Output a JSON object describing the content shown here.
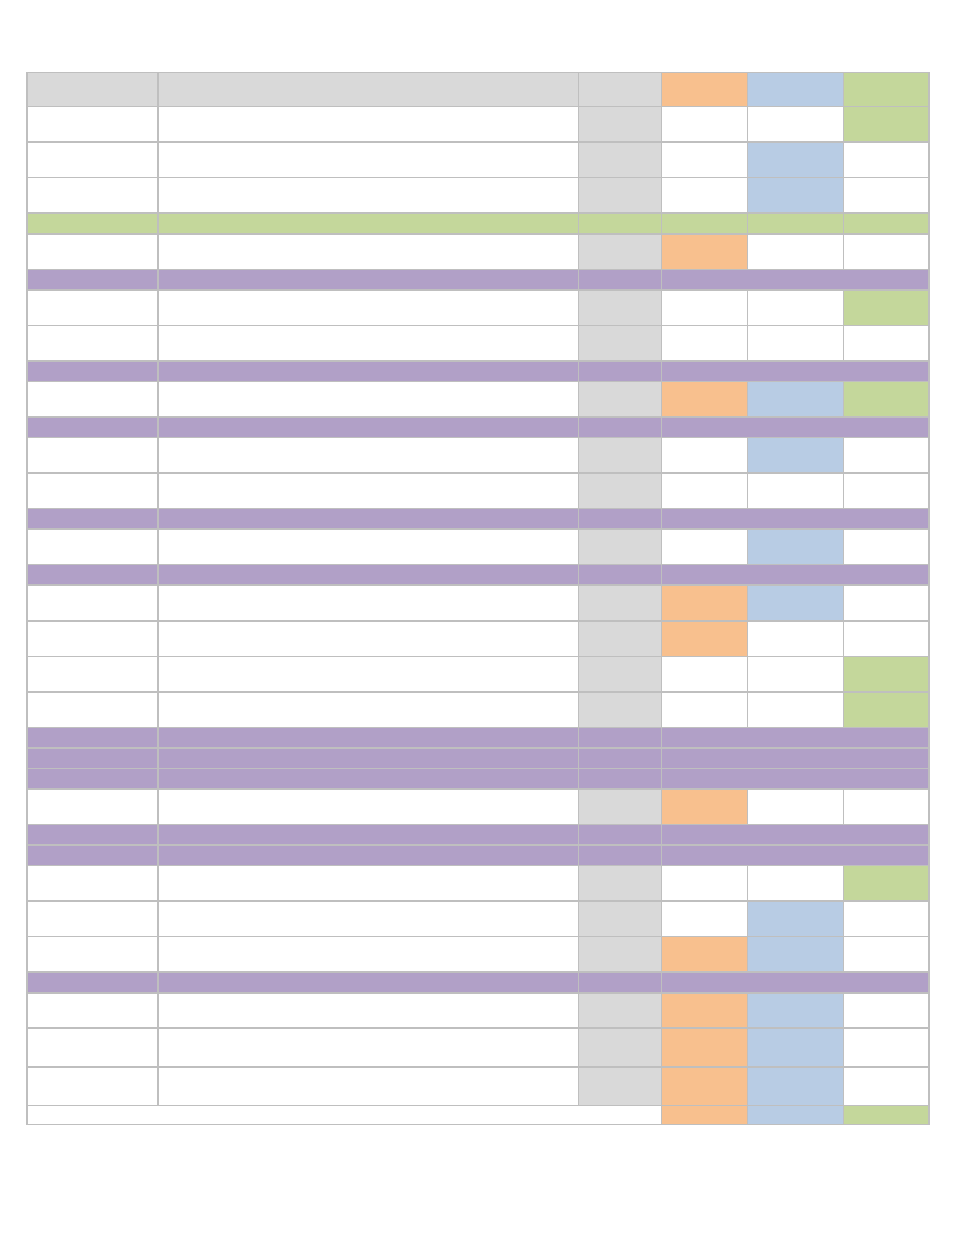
{
  "colors": {
    "grid": "#bfbfbf",
    "gray": "#d9d9d9",
    "orange": "#f8c08e",
    "blue": "#b8cce4",
    "green": "#c4d79b",
    "purple": "#b1a0c7",
    "white": "#ffffff"
  },
  "rows": [
    {
      "kind": "header",
      "h": "tall",
      "fills": [
        "gray",
        "gray",
        "gray",
        "orange",
        "blue",
        "green"
      ]
    },
    {
      "kind": "item",
      "h": "tall",
      "fills": [
        "white",
        "white",
        "gray",
        "white",
        "white",
        "green"
      ]
    },
    {
      "kind": "item",
      "h": "tall",
      "fills": [
        "white",
        "white",
        "gray",
        "white",
        "blue",
        "white"
      ]
    },
    {
      "kind": "item",
      "h": "tall",
      "fills": [
        "white",
        "white",
        "gray",
        "white",
        "blue",
        "white"
      ]
    },
    {
      "kind": "band",
      "h": "short",
      "fills": [
        "green",
        "green",
        "green",
        "green",
        "green",
        "green"
      ]
    },
    {
      "kind": "item",
      "h": "tall",
      "fills": [
        "white",
        "white",
        "gray",
        "orange",
        "white",
        "white"
      ]
    },
    {
      "kind": "section",
      "h": "short",
      "fills": [
        "purple",
        "purple",
        "purple",
        "purple"
      ]
    },
    {
      "kind": "item",
      "h": "tall",
      "fills": [
        "white",
        "white",
        "gray",
        "white",
        "white",
        "green"
      ]
    },
    {
      "kind": "item",
      "h": "tall",
      "fills": [
        "white",
        "white",
        "gray",
        "white",
        "white",
        "white"
      ]
    },
    {
      "kind": "section",
      "h": "short",
      "fills": [
        "purple",
        "purple",
        "purple",
        "purple"
      ]
    },
    {
      "kind": "item",
      "h": "tall",
      "fills": [
        "white",
        "white",
        "gray",
        "orange",
        "blue",
        "green"
      ]
    },
    {
      "kind": "section",
      "h": "short",
      "fills": [
        "purple",
        "purple",
        "purple",
        "purple"
      ]
    },
    {
      "kind": "item",
      "h": "tall",
      "fills": [
        "white",
        "white",
        "gray",
        "white",
        "blue",
        "white"
      ]
    },
    {
      "kind": "item",
      "h": "tall",
      "fills": [
        "white",
        "white",
        "gray",
        "white",
        "white",
        "white"
      ]
    },
    {
      "kind": "section",
      "h": "short",
      "fills": [
        "purple",
        "purple",
        "purple",
        "purple"
      ]
    },
    {
      "kind": "item",
      "h": "tall",
      "fills": [
        "white",
        "white",
        "gray",
        "white",
        "blue",
        "white"
      ]
    },
    {
      "kind": "section",
      "h": "short",
      "fills": [
        "purple",
        "purple",
        "purple",
        "purple"
      ]
    },
    {
      "kind": "item",
      "h": "tall",
      "fills": [
        "white",
        "white",
        "gray",
        "orange",
        "blue",
        "white"
      ]
    },
    {
      "kind": "item",
      "h": "tall",
      "fills": [
        "white",
        "white",
        "gray",
        "orange",
        "white",
        "white"
      ]
    },
    {
      "kind": "item",
      "h": "tall",
      "fills": [
        "white",
        "white",
        "gray",
        "white",
        "white",
        "green"
      ]
    },
    {
      "kind": "item",
      "h": "tall",
      "fills": [
        "white",
        "white",
        "gray",
        "white",
        "white",
        "green"
      ]
    },
    {
      "kind": "section",
      "h": "short",
      "fills": [
        "purple",
        "purple",
        "purple",
        "purple"
      ]
    },
    {
      "kind": "section",
      "h": "short",
      "fills": [
        "purple",
        "purple",
        "purple",
        "purple"
      ]
    },
    {
      "kind": "section",
      "h": "short",
      "fills": [
        "purple",
        "purple",
        "purple",
        "purple"
      ]
    },
    {
      "kind": "item",
      "h": "tall",
      "fills": [
        "white",
        "white",
        "gray",
        "orange",
        "white",
        "white"
      ]
    },
    {
      "kind": "section",
      "h": "short",
      "fills": [
        "purple",
        "purple",
        "purple",
        "purple"
      ]
    },
    {
      "kind": "section",
      "h": "short",
      "fills": [
        "purple",
        "purple",
        "purple",
        "purple"
      ]
    },
    {
      "kind": "item",
      "h": "tall",
      "fills": [
        "white",
        "white",
        "gray",
        "white",
        "white",
        "green"
      ]
    },
    {
      "kind": "item",
      "h": "tall",
      "fills": [
        "white",
        "white",
        "gray",
        "white",
        "blue",
        "white"
      ]
    },
    {
      "kind": "item",
      "h": "tall",
      "fills": [
        "white",
        "white",
        "gray",
        "orange",
        "blue",
        "white"
      ]
    },
    {
      "kind": "section",
      "h": "short",
      "fills": [
        "purple",
        "purple",
        "purple",
        "purple"
      ]
    },
    {
      "kind": "item",
      "h": "tall",
      "fills": [
        "white",
        "white",
        "gray",
        "orange",
        "blue",
        "white"
      ]
    },
    {
      "kind": "item",
      "h": "last2",
      "fills": [
        "white",
        "white",
        "gray",
        "orange",
        "blue",
        "white"
      ]
    },
    {
      "kind": "item",
      "h": "last2",
      "fills": [
        "white",
        "white",
        "gray",
        "orange",
        "blue",
        "white"
      ]
    },
    {
      "kind": "total",
      "h": "last",
      "fills": [
        "white",
        "orange",
        "blue",
        "green"
      ]
    }
  ]
}
